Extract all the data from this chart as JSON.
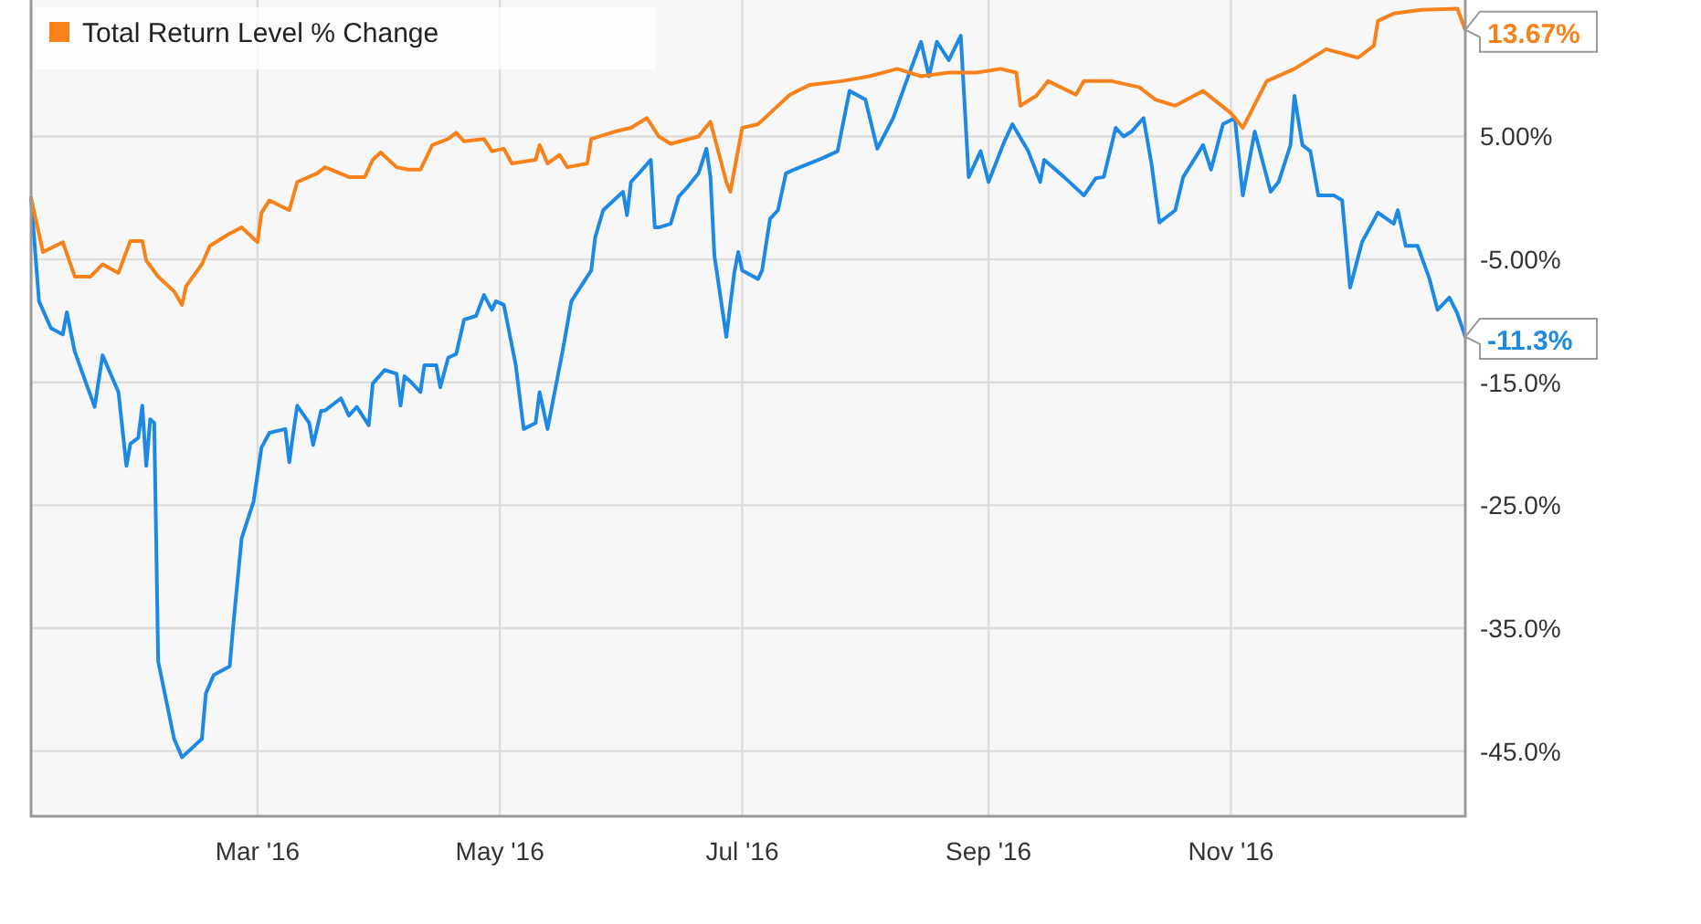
{
  "chart_data": {
    "type": "line",
    "xlim": [
      "2016-01-04",
      "2016-12-30"
    ],
    "xticks": [
      {
        "value": "2016-03-01",
        "label": "Mar '16"
      },
      {
        "value": "2016-05-01",
        "label": "May '16"
      },
      {
        "value": "2016-07-01",
        "label": "Jul '16"
      },
      {
        "value": "2016-09-01",
        "label": "Sep '16"
      },
      {
        "value": "2016-11-01",
        "label": "Nov '16"
      }
    ],
    "ylim": [
      -50.3,
      16.1
    ],
    "yticks": [
      {
        "value": 5,
        "label": "5.00%"
      },
      {
        "value": -5,
        "label": "-5.00%"
      },
      {
        "value": -15,
        "label": "-15.0%"
      },
      {
        "value": -25,
        "label": "-25.0%"
      },
      {
        "value": -35,
        "label": "-35.0%"
      },
      {
        "value": -45,
        "label": "-45.0%"
      }
    ],
    "grid": true,
    "legend": "top left",
    "line_style": "solid",
    "marker": "none",
    "series": [
      {
        "color": "#1e88e5",
        "x": [
          "2016-01-04",
          "2016-01-06",
          "2016-01-09",
          "2016-01-12",
          "2016-01-13",
          "2016-01-15",
          "2016-01-20",
          "2016-01-22",
          "2016-01-26",
          "2016-01-28",
          "2016-01-29",
          "2016-01-31",
          "2016-02-01",
          "2016-02-02",
          "2016-02-03",
          "2016-02-04",
          "2016-02-05",
          "2016-02-09",
          "2016-02-11",
          "2016-02-16",
          "2016-02-17",
          "2016-02-19",
          "2016-02-23",
          "2016-02-24",
          "2016-02-26",
          "2016-02-29",
          "2016-03-02",
          "2016-03-04",
          "2016-03-08",
          "2016-03-09",
          "2016-03-10",
          "2016-03-11",
          "2016-03-14",
          "2016-03-15",
          "2016-03-17",
          "2016-03-18",
          "2016-03-22",
          "2016-03-24",
          "2016-03-26",
          "2016-03-29",
          "2016-03-30",
          "2016-04-02",
          "2016-04-05",
          "2016-04-06",
          "2016-04-07",
          "2016-04-09",
          "2016-04-11",
          "2016-04-12",
          "2016-04-15",
          "2016-04-16",
          "2016-04-18",
          "2016-04-20",
          "2016-04-22",
          "2016-04-25",
          "2016-04-27",
          "2016-04-29",
          "2016-04-30",
          "2016-05-02",
          "2016-05-05",
          "2016-05-07",
          "2016-05-10",
          "2016-05-11",
          "2016-05-13",
          "2016-05-17",
          "2016-05-19",
          "2016-05-22",
          "2016-05-24",
          "2016-05-25",
          "2016-05-27",
          "2016-06-01",
          "2016-06-02",
          "2016-06-03",
          "2016-06-05",
          "2016-06-08",
          "2016-06-09",
          "2016-06-10",
          "2016-06-13",
          "2016-06-15",
          "2016-06-17",
          "2016-06-20",
          "2016-06-22",
          "2016-06-23",
          "2016-06-24",
          "2016-06-27",
          "2016-06-29",
          "2016-06-30",
          "2016-07-01",
          "2016-07-05",
          "2016-07-06",
          "2016-07-08",
          "2016-07-10",
          "2016-07-12",
          "2016-07-14",
          "2016-07-21",
          "2016-07-25",
          "2016-07-28",
          "2016-08-01",
          "2016-08-04",
          "2016-08-08",
          "2016-08-11",
          "2016-08-15",
          "2016-08-17",
          "2016-08-19",
          "2016-08-22",
          "2016-08-25",
          "2016-08-27",
          "2016-08-30",
          "2016-09-01",
          "2016-09-05",
          "2016-09-07",
          "2016-09-11",
          "2016-09-14",
          "2016-09-15",
          "2016-09-20",
          "2016-09-25",
          "2016-09-28",
          "2016-09-30",
          "2016-10-03",
          "2016-10-05",
          "2016-10-07",
          "2016-10-10",
          "2016-10-12",
          "2016-10-14",
          "2016-10-18",
          "2016-10-20",
          "2016-10-25",
          "2016-10-27",
          "2016-10-30",
          "2016-11-02",
          "2016-11-04",
          "2016-11-07",
          "2016-11-11",
          "2016-11-13",
          "2016-11-16",
          "2016-11-17",
          "2016-11-19",
          "2016-11-21",
          "2016-11-23",
          "2016-11-27",
          "2016-11-29",
          "2016-12-01",
          "2016-12-04",
          "2016-12-08",
          "2016-12-12",
          "2016-12-13",
          "2016-12-15",
          "2016-12-18",
          "2016-12-21",
          "2016-12-23",
          "2016-12-26",
          "2016-12-28",
          "2016-12-30"
        ],
        "values": [
          0,
          -8.4,
          -10.6,
          -11.1,
          -9.3,
          -12.5,
          -17.0,
          -12.8,
          -15.8,
          -21.8,
          -20.0,
          -19.5,
          -16.9,
          -21.8,
          -18.0,
          -18.3,
          -37.7,
          -44.0,
          -45.5,
          -44.0,
          -40.3,
          -38.8,
          -38.1,
          -34.4,
          -27.7,
          -24.7,
          -20.3,
          -19.1,
          -18.8,
          -21.5,
          -19.1,
          -16.9,
          -18.3,
          -20.1,
          -17.3,
          -17.3,
          -16.3,
          -17.7,
          -17.0,
          -18.5,
          -15.1,
          -14.0,
          -14.3,
          -16.9,
          -14.5,
          -15.1,
          -15.8,
          -13.6,
          -13.6,
          -15.4,
          -13.0,
          -12.7,
          -9.9,
          -9.6,
          -7.9,
          -9.1,
          -8.4,
          -8.7,
          -13.6,
          -18.8,
          -18.3,
          -15.8,
          -18.8,
          -12.1,
          -8.4,
          -6.9,
          -5.9,
          -3.2,
          -1.0,
          0.5,
          -1.4,
          1.3,
          2.0,
          3.1,
          -2.4,
          -2.4,
          -2.1,
          0.1,
          0.8,
          2.0,
          4.0,
          1.7,
          -4.7,
          -11.3,
          -6.1,
          -4.4,
          -5.9,
          -6.6,
          -5.9,
          -1.7,
          -1.0,
          2.0,
          2.3,
          3.2,
          3.8,
          8.7,
          8.0,
          4.0,
          6.5,
          9.2,
          12.7,
          9.9,
          12.7,
          11.2,
          13.2,
          1.7,
          3.8,
          1.3,
          4.6,
          6.0,
          3.8,
          1.3,
          3.1,
          1.7,
          0.2,
          1.6,
          1.7,
          5.7,
          5.0,
          5.4,
          6.5,
          2.8,
          -2.0,
          -1.0,
          1.7,
          4.3,
          2.3,
          6.0,
          6.5,
          0.2,
          5.4,
          0.5,
          1.3,
          4.3,
          8.3,
          4.3,
          3.8,
          0.2,
          0.2,
          -0.2,
          -7.3,
          -3.6,
          -1.2,
          -2.1,
          -1.0,
          -3.9,
          -3.9,
          -6.6,
          -9.1,
          -8.1,
          -9.4,
          -11.3
        ]
      },
      {
        "name": "Total Return Level % Change",
        "color": "#f7821b",
        "x": [
          "2016-01-04",
          "2016-01-07",
          "2016-01-12",
          "2016-01-15",
          "2016-01-19",
          "2016-01-22",
          "2016-01-26",
          "2016-01-29",
          "2016-02-01",
          "2016-02-02",
          "2016-02-05",
          "2016-02-09",
          "2016-02-11",
          "2016-02-12",
          "2016-02-16",
          "2016-02-18",
          "2016-02-23",
          "2016-02-26",
          "2016-03-01",
          "2016-03-02",
          "2016-03-04",
          "2016-03-09",
          "2016-03-11",
          "2016-03-16",
          "2016-03-18",
          "2016-03-24",
          "2016-03-28",
          "2016-03-30",
          "2016-04-01",
          "2016-04-05",
          "2016-04-08",
          "2016-04-11",
          "2016-04-14",
          "2016-04-18",
          "2016-04-20",
          "2016-04-22",
          "2016-04-27",
          "2016-04-29",
          "2016-05-02",
          "2016-05-04",
          "2016-05-10",
          "2016-05-11",
          "2016-05-13",
          "2016-05-16",
          "2016-05-18",
          "2016-05-23",
          "2016-05-24",
          "2016-05-30",
          "2016-06-03",
          "2016-06-07",
          "2016-06-10",
          "2016-06-13",
          "2016-06-20",
          "2016-06-23",
          "2016-06-27",
          "2016-06-28",
          "2016-07-01",
          "2016-07-05",
          "2016-07-08",
          "2016-07-13",
          "2016-07-18",
          "2016-07-26",
          "2016-08-02",
          "2016-08-09",
          "2016-08-15",
          "2016-08-22",
          "2016-08-29",
          "2016-09-04",
          "2016-09-08",
          "2016-09-09",
          "2016-09-13",
          "2016-09-16",
          "2016-09-23",
          "2016-09-25",
          "2016-10-02",
          "2016-10-09",
          "2016-10-13",
          "2016-10-18",
          "2016-10-25",
          "2016-11-01",
          "2016-11-04",
          "2016-11-10",
          "2016-11-17",
          "2016-11-25",
          "2016-12-03",
          "2016-12-07",
          "2016-12-08",
          "2016-12-12",
          "2016-12-19",
          "2016-12-28",
          "2016-12-30"
        ],
        "values": [
          0,
          -4.4,
          -3.6,
          -6.4,
          -6.4,
          -5.4,
          -6.1,
          -3.5,
          -3.5,
          -5.1,
          -6.4,
          -7.6,
          -8.7,
          -7.2,
          -5.4,
          -3.9,
          -2.9,
          -2.4,
          -3.6,
          -1.2,
          -0.2,
          -1.0,
          1.3,
          2.0,
          2.5,
          1.7,
          1.7,
          3.1,
          3.7,
          2.5,
          2.3,
          2.3,
          4.3,
          4.8,
          5.3,
          4.6,
          4.8,
          3.8,
          4.0,
          2.8,
          3.1,
          4.3,
          2.8,
          3.5,
          2.5,
          2.8,
          4.8,
          5.4,
          5.7,
          6.5,
          5.0,
          4.4,
          5.0,
          6.2,
          1.3,
          0.5,
          5.7,
          6.0,
          6.9,
          8.4,
          9.2,
          9.5,
          9.9,
          10.5,
          9.9,
          10.2,
          10.2,
          10.5,
          10.2,
          7.5,
          8.3,
          9.5,
          8.4,
          9.5,
          9.5,
          9.0,
          8.0,
          7.5,
          8.7,
          6.9,
          5.7,
          9.5,
          10.5,
          12.1,
          11.4,
          12.4,
          14.4,
          15.0,
          15.3,
          15.4,
          13.67
        ]
      }
    ],
    "annotations": [
      {
        "text": "-11.3%",
        "x": "2016-12-30",
        "y": -11.3
      },
      {
        "text": "13.67%",
        "x": "2016-12-30",
        "y": 13.67
      }
    ]
  }
}
